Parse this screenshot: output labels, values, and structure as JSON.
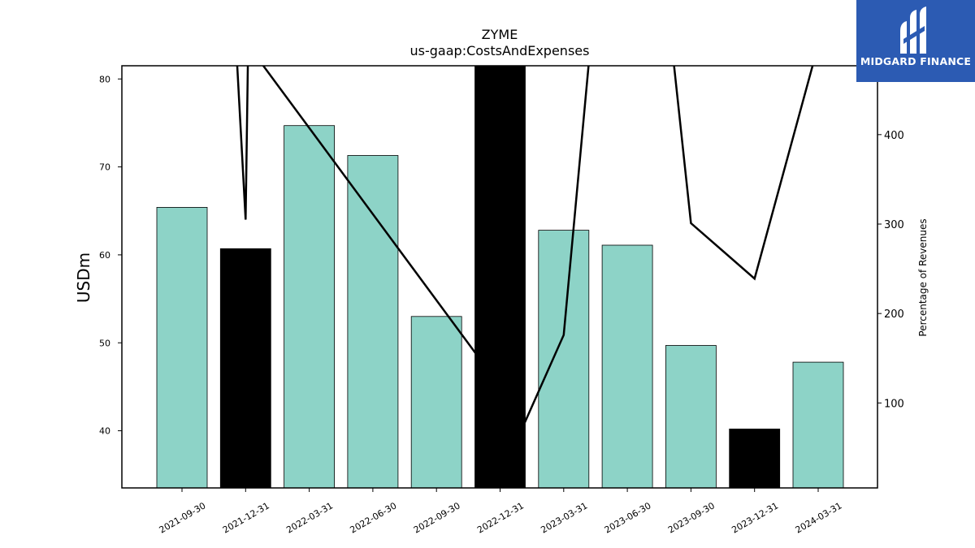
{
  "chart_data": {
    "type": "bar",
    "title": "ZYME",
    "subtitle": "us-gaap:CostsAndExpenses",
    "ylabel": "USDm",
    "ylabel_right": "Percentage of Revenues",
    "categories": [
      "2021-09-30",
      "2021-12-31",
      "2022-03-31",
      "2022-06-30",
      "2022-09-30",
      "2022-12-31",
      "2023-03-31",
      "2023-06-30",
      "2023-09-30",
      "2023-12-31",
      "2024-03-31"
    ],
    "values": [
      65.4,
      60.7,
      74.7,
      71.3,
      53.0,
      82.0,
      62.8,
      61.1,
      49.7,
      40.2,
      47.8
    ],
    "highlight": [
      false,
      true,
      false,
      false,
      false,
      true,
      false,
      false,
      false,
      true,
      false
    ],
    "ylim": [
      33.5,
      81.5
    ],
    "yticks": [
      40,
      50,
      60,
      70,
      80
    ],
    "series": [
      {
        "axis": "right",
        "values": [
          null,
          305,
          null,
          null,
          null,
          80,
          176,
          null,
          301,
          239,
          null
        ]
      }
    ],
    "line_points": [
      {
        "x": 0.85,
        "y": 500
      },
      {
        "x": 1.0,
        "y": 305
      },
      {
        "x": 1.04,
        "y": 500
      },
      {
        "x": 5.4,
        "y": 80
      },
      {
        "x": 6.0,
        "y": 176
      },
      {
        "x": 6.42,
        "y": 500
      },
      {
        "x": 7.7,
        "y": 500
      },
      {
        "x": 8.0,
        "y": 301
      },
      {
        "x": 9.0,
        "y": 239
      },
      {
        "x": 10.0,
        "y": 500
      }
    ],
    "ylim_right": [
      5,
      477
    ],
    "yticks_right": [
      100,
      200,
      300,
      400
    ],
    "bar_color": "#8dd3c7",
    "highlight_color": "#000000",
    "line_color": "#000000",
    "grid": false
  },
  "logo": {
    "text": "MIDGARD FINANCE",
    "background": "#2c5bb3"
  }
}
